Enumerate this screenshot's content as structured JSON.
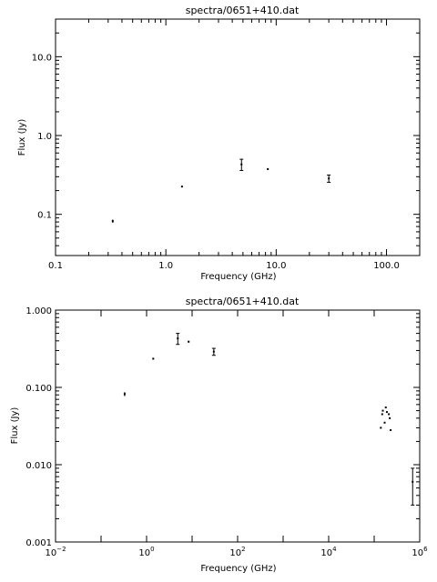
{
  "chart_data": [
    {
      "type": "scatter",
      "title": "spectra/0651+410.dat",
      "xlabel": "Frequency (GHz)",
      "ylabel": "Flux (Jy)",
      "xscale": "log",
      "yscale": "log",
      "xlim": [
        0.1,
        200
      ],
      "ylim": [
        0.03,
        30
      ],
      "xticks": [
        0.1,
        1,
        10,
        100
      ],
      "xtick_labels": [
        "0.1",
        "1.0",
        "10.0",
        "100.0"
      ],
      "yticks": [
        0.1,
        1,
        10
      ],
      "ytick_labels": [
        "0.1",
        "1.0",
        "10.0"
      ],
      "points": [
        {
          "x": 0.33,
          "y": 0.082,
          "err": 0.004
        },
        {
          "x": 1.4,
          "y": 0.225,
          "err": 0.004
        },
        {
          "x": 4.85,
          "y": 0.43,
          "err": 0.07
        },
        {
          "x": 8.4,
          "y": 0.375,
          "err": 0.008
        },
        {
          "x": 30,
          "y": 0.285,
          "err": 0.03
        }
      ]
    },
    {
      "type": "scatter",
      "title": "spectra/0651+410.dat",
      "xlabel": "Frequency (GHz)",
      "ylabel": "Flux (Jy)",
      "xscale": "log",
      "yscale": "log",
      "xlim": [
        0.01,
        1000000
      ],
      "ylim": [
        0.001,
        1
      ],
      "xtick_labels": [
        {
          "base": "10",
          "exp": "−2",
          "value": 0.01
        },
        {
          "base": "10",
          "exp": "0",
          "value": 1
        },
        {
          "base": "10",
          "exp": "2",
          "value": 100
        },
        {
          "base": "10",
          "exp": "4",
          "value": 10000
        },
        {
          "base": "10",
          "exp": "6",
          "value": 1000000
        }
      ],
      "yticks": [
        0.001,
        0.01,
        0.1,
        1
      ],
      "ytick_labels": [
        "0.001",
        "0.010",
        "0.100",
        "1.000"
      ],
      "points": [
        {
          "x": 0.33,
          "y": 0.082,
          "err": 0.005
        },
        {
          "x": 1.4,
          "y": 0.235,
          "err": 0.006
        },
        {
          "x": 4.85,
          "y": 0.43,
          "err": 0.07
        },
        {
          "x": 8.4,
          "y": 0.39,
          "err": 0.01
        },
        {
          "x": 30,
          "y": 0.29,
          "err": 0.03
        },
        {
          "x": 140000,
          "y": 0.03,
          "err": 0
        },
        {
          "x": 150000,
          "y": 0.045,
          "err": 0
        },
        {
          "x": 155000,
          "y": 0.05,
          "err": 0
        },
        {
          "x": 170000,
          "y": 0.035,
          "err": 0
        },
        {
          "x": 180000,
          "y": 0.055,
          "err": 0
        },
        {
          "x": 190000,
          "y": 0.048,
          "err": 0
        },
        {
          "x": 210000,
          "y": 0.045,
          "err": 0
        },
        {
          "x": 220000,
          "y": 0.04,
          "err": 0
        },
        {
          "x": 230000,
          "y": 0.028,
          "err": 0
        },
        {
          "x": 700000,
          "y": 0.006,
          "err": 0.003
        }
      ]
    }
  ]
}
